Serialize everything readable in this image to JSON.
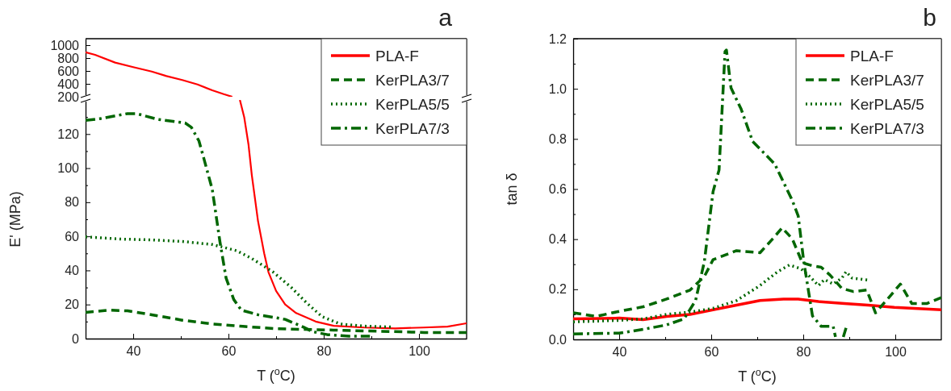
{
  "chart_data": [
    {
      "type": "line",
      "annotations": [
        "a"
      ],
      "xlim": [
        30,
        110
      ],
      "ylim": [
        200,
        1100
      ],
      "yticks": [
        200,
        400,
        600,
        800,
        1000
      ],
      "tick_labels": "y",
      "legend": false,
      "series": [
        {
          "color": "#ff0000",
          "line_style": "solid",
          "x": [
            30,
            32,
            36.2,
            40,
            43.9,
            47,
            50.3,
            53.5,
            56.6,
            59,
            60.8
          ],
          "values": [
            890,
            850,
            730,
            660,
            590,
            520,
            460,
            390,
            300,
            240,
            200
          ]
        }
      ]
    },
    {
      "type": "line",
      "xlabel": "T ($^{o}$C)",
      "ylabel": "E' (MPa)",
      "xlim": [
        30,
        110
      ],
      "ylim": [
        0,
        140
      ],
      "xticks": [
        40,
        {
          "value": 50,
          "label": null
        },
        60,
        {
          "value": 70,
          "label": null
        },
        80,
        {
          "value": 90,
          "label": null
        },
        100
      ],
      "yticks": [
        0,
        {
          "value": 10,
          "label": null
        },
        20,
        {
          "value": 30,
          "label": null
        },
        40,
        {
          "value": 50,
          "label": null
        },
        60,
        {
          "value": 70,
          "label": null
        },
        80,
        {
          "value": 90,
          "label": null
        },
        100,
        {
          "value": 110,
          "label": null
        },
        120,
        {
          "value": 130,
          "label": null
        }
      ],
      "legend": "top right",
      "series": [
        {
          "name": "PLA-F",
          "color": "#ff0000",
          "line_style": "solid",
          "x": [
            62.4,
            63.3,
            64.2,
            64.9,
            66.2,
            67.5,
            68.4,
            70,
            71.9,
            74.2,
            78.3,
            82.1,
            88.5,
            95,
            101,
            106,
            110
          ],
          "values": [
            140,
            130,
            114,
            96,
            69,
            50,
            39,
            28,
            20,
            15,
            10,
            7.5,
            6.5,
            6,
            6.5,
            7,
            9
          ]
        },
        {
          "name": "KerPLA3/7",
          "color": "#006600",
          "line_style": "dashed",
          "x": [
            30,
            35,
            38.8,
            43.9,
            50.3,
            56.6,
            63,
            69.4,
            75.7,
            82.1,
            88.5,
            94.8,
            101.2,
            110
          ],
          "values": [
            15.4,
            16.7,
            16.3,
            14,
            10.8,
            8.6,
            7.2,
            5.9,
            5.4,
            5,
            4.5,
            4.1,
            3.6,
            3.6
          ]
        },
        {
          "name": "KerPLA5/5",
          "color": "#006600",
          "line_style": "dotted",
          "x": [
            30,
            37.5,
            43.9,
            50.3,
            56.6,
            61.7,
            64.9,
            69.4,
            73.2,
            76.4,
            79.6,
            83.4,
            88.5,
            94.2
          ],
          "values": [
            59.7,
            58.4,
            57.9,
            57,
            55.2,
            51.6,
            47,
            39,
            30,
            21,
            13,
            8.6,
            7.3,
            6.8
          ]
        },
        {
          "name": "KerPLA7/3",
          "color": "#006600",
          "line_style": "dashdot",
          "x": [
            30,
            33,
            38.8,
            40.7,
            45.2,
            50.9,
            52.2,
            53.8,
            54.8,
            56.6,
            58.2,
            59.5,
            61.1,
            62.7,
            66.2,
            71.9,
            75.7,
            77.6,
            80.8,
            85.3,
            89.7
          ],
          "values": [
            128,
            129,
            132,
            132,
            128.6,
            126.5,
            124,
            116,
            106,
            87.5,
            57,
            35.5,
            23,
            16.7,
            14,
            11.3,
            6.8,
            4.1,
            2.3,
            1.4,
            1.4
          ]
        }
      ]
    },
    {
      "type": "line",
      "annotations": [
        "b"
      ],
      "xlabel": "T ($^{o}$C)",
      "ylabel": "tan δ",
      "xlim": [
        30,
        110
      ],
      "ylim": [
        0,
        1.2
      ],
      "xticks": [
        40,
        {
          "value": 50,
          "label": null
        },
        60,
        {
          "value": 70,
          "label": null
        },
        80,
        {
          "value": 90,
          "label": null
        },
        100
      ],
      "yticks": [
        {
          "value": 0,
          "label": "0.0"
        },
        {
          "value": 0.1,
          "label": null
        },
        {
          "value": 0.2,
          "label": "0.2"
        },
        {
          "value": 0.3,
          "label": null
        },
        {
          "value": 0.4,
          "label": "0.4"
        },
        {
          "value": 0.5,
          "label": null
        },
        {
          "value": 0.6,
          "label": "0.6"
        },
        {
          "value": 0.7,
          "label": null
        },
        {
          "value": 0.8,
          "label": "0.8"
        },
        {
          "value": 0.9,
          "label": null
        },
        {
          "value": 1,
          "label": "1.0"
        },
        {
          "value": 1.1,
          "label": null
        },
        {
          "value": 1.2,
          "label": "1.2"
        }
      ],
      "legend": "top right",
      "series": [
        {
          "name": "PLA-F",
          "color": "#ff0000",
          "line_style": "solid",
          "x": [
            30,
            40,
            45.2,
            50.3,
            55.4,
            60.4,
            65.5,
            70.6,
            75.7,
            78.9,
            83.3,
            89,
            94.1,
            99.8,
            110
          ],
          "values": [
            0.082,
            0.085,
            0.079,
            0.092,
            0.1,
            0.118,
            0.137,
            0.155,
            0.161,
            0.161,
            0.151,
            0.143,
            0.137,
            0.128,
            0.118
          ]
        },
        {
          "name": "KerPLA3/7",
          "color": "#006600",
          "line_style": "dashed",
          "x": [
            30,
            35,
            40,
            45.2,
            50.3,
            55.4,
            58.5,
            60.4,
            65.5,
            70.6,
            73.1,
            75.4,
            77.6,
            79.8,
            82,
            83.9,
            85.8,
            88.4,
            90.9,
            93.8,
            95.7,
            98.6,
            101.1,
            103.6,
            106.8,
            110
          ],
          "values": [
            0.106,
            0.092,
            0.112,
            0.13,
            0.161,
            0.197,
            0.251,
            0.318,
            0.354,
            0.346,
            0.396,
            0.445,
            0.402,
            0.306,
            0.294,
            0.288,
            0.257,
            0.203,
            0.191,
            0.197,
            0.106,
            0.167,
            0.221,
            0.143,
            0.143,
            0.167
          ]
        },
        {
          "name": "KerPLA5/5",
          "color": "#006600",
          "line_style": "dotted",
          "x": [
            30,
            40,
            45.2,
            50.3,
            55.4,
            60.4,
            65.5,
            70.6,
            74.4,
            77,
            79.5,
            81.4,
            83.3,
            84.6,
            86.5,
            88.4,
            89.3,
            90.6,
            94.1
          ],
          "values": [
            0.07,
            0.076,
            0.082,
            0.1,
            0.109,
            0.124,
            0.155,
            0.215,
            0.27,
            0.297,
            0.282,
            0.251,
            0.215,
            0.239,
            0.221,
            0.245,
            0.27,
            0.245,
            0.237
          ]
        },
        {
          "name": "KerPLA7/3",
          "color": "#006600",
          "line_style": "dashdot",
          "x": [
            30,
            40,
            45.2,
            50.3,
            54.1,
            56.6,
            58.5,
            60.4,
            61.7,
            63,
            63.3,
            64.3,
            66.5,
            69,
            73.8,
            77.6,
            78.9,
            80.1,
            82,
            83.9,
            86.5,
            87,
            87.8,
            88.7,
            89.3
          ],
          "values": [
            0.022,
            0.025,
            0.04,
            0.058,
            0.082,
            0.155,
            0.31,
            0.59,
            0.676,
            1.149,
            1.155,
            1.004,
            0.919,
            0.79,
            0.7,
            0.555,
            0.493,
            0.312,
            0.094,
            0.052,
            0.052,
            0.01,
            null,
            0.01,
            0.046
          ]
        }
      ]
    }
  ]
}
